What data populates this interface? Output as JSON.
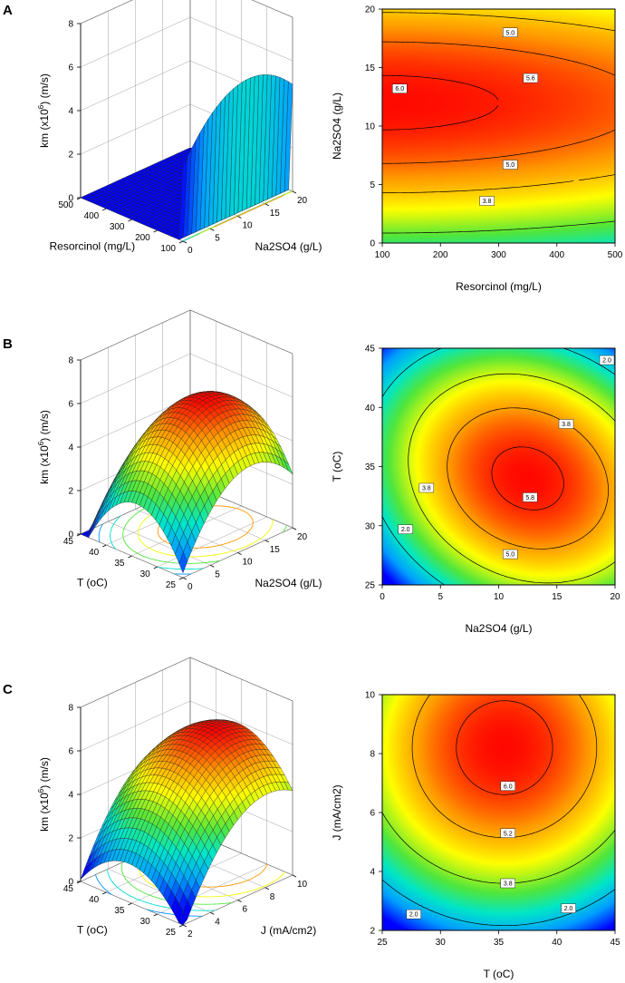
{
  "colors": {
    "low": "#0000ff",
    "mid": "#ffff00",
    "high": "#ff0000",
    "line": "#000000"
  },
  "chart_data": [
    {
      "panel": "A",
      "type": "surface3d",
      "zlabel": "km (x10⁶) (m/s)",
      "zlabel_base": "km (x10",
      "zlabel_sup": "6",
      "zlabel_tail": ") (m/s)",
      "xlabel": "Resorcinol (mg/L)",
      "ylabel": "Na2SO4 (g/L)",
      "xlim": [
        100,
        500
      ],
      "ylim": [
        0,
        20
      ],
      "zlim": [
        0,
        8
      ],
      "x_ticks": [
        100,
        200,
        300,
        400,
        500
      ],
      "y_ticks": [
        0,
        5,
        10,
        15,
        20
      ],
      "z_ticks": [
        0,
        2,
        4,
        6,
        8
      ],
      "model": {
        "z0": 6.1,
        "ax": 0.12,
        "ay": 0.0185,
        "x0": 100,
        "y0": 12,
        "flat": 0.0,
        "flatX": 0.0
      },
      "z_surface_min": 1.7,
      "z_surface_max": 6.1
    },
    {
      "panel": "A",
      "type": "contour",
      "xlabel": "Resorcinol (mg/L)",
      "ylabel": "Na2SO4 (g/L)",
      "xlim": [
        100,
        500
      ],
      "ylim": [
        0,
        20
      ],
      "x_ticks": [
        100,
        200,
        300,
        400,
        500
      ],
      "y_ticks": [
        0,
        5,
        10,
        15,
        20
      ],
      "levels": [
        3.8,
        5.0,
        5.6,
        6.0
      ],
      "contour_labels": [
        {
          "text": "5.0",
          "x": 320,
          "y": 18.0
        },
        {
          "text": "5.6",
          "x": 355,
          "y": 14.1
        },
        {
          "text": "6.0",
          "x": 130,
          "y": 13.2
        },
        {
          "text": "5.0",
          "x": 320,
          "y": 6.7
        },
        {
          "text": "3.8",
          "x": 280,
          "y": 3.6
        }
      ]
    },
    {
      "panel": "B",
      "type": "surface3d",
      "zlabel": "km (x10⁶) (m/s)",
      "zlabel_base": "km (x10",
      "zlabel_sup": "6",
      "zlabel_tail": ") (m/s)",
      "xlabel": "T (oC)",
      "ylabel": "Na2SO4 (g/L)",
      "xlim": [
        25,
        45
      ],
      "ylim": [
        0,
        20
      ],
      "zlim": [
        0,
        8
      ],
      "x_ticks": [
        25,
        30,
        35,
        40,
        45
      ],
      "y_ticks": [
        0,
        5,
        10,
        15,
        20
      ],
      "z_ticks": [
        0,
        2,
        4,
        6,
        8
      ],
      "model": {
        "z0": 6.0,
        "ax": 0.028,
        "ay": 0.0225,
        "x0": 34,
        "y0": 12.5,
        "flat": 0.0,
        "flatX": 0.0
      },
      "z_surface_min": 0.0,
      "z_surface_max": 6.0
    },
    {
      "panel": "B",
      "type": "contour",
      "xlabel": "Na2SO4 (g/L)",
      "ylabel": "T (oC)",
      "xlim": [
        0,
        20
      ],
      "ylim": [
        25,
        45
      ],
      "x_ticks": [
        0,
        5,
        10,
        15,
        20
      ],
      "y_ticks": [
        25,
        30,
        35,
        40,
        45
      ],
      "levels": [
        2.0,
        3.8,
        5.0,
        5.8
      ],
      "contour_labels": [
        {
          "text": "2.0",
          "x": 19.3,
          "y": 44.0
        },
        {
          "text": "3.8",
          "x": 15.8,
          "y": 38.6
        },
        {
          "text": "3.8",
          "x": 3.8,
          "y": 33.2
        },
        {
          "text": "2.0",
          "x": 2.0,
          "y": 29.7
        },
        {
          "text": "5.8",
          "x": 12.7,
          "y": 32.4
        },
        {
          "text": "5.0",
          "x": 11.0,
          "y": 27.6
        }
      ]
    },
    {
      "panel": "C",
      "type": "surface3d",
      "zlabel": "km (x10⁶) (m/s)",
      "zlabel_base": "km (x10",
      "zlabel_sup": "6",
      "zlabel_tail": ") (m/s)",
      "xlabel": "T (oC)",
      "ylabel": "J (mA/cm2)",
      "xlim": [
        25,
        45
      ],
      "ylim": [
        2,
        10
      ],
      "zlim": [
        0,
        8
      ],
      "x_ticks": [
        25,
        30,
        35,
        40,
        45
      ],
      "y_ticks": [
        2,
        4,
        6,
        8,
        10
      ],
      "z_ticks": [
        0,
        2,
        4,
        6,
        8
      ],
      "model": {
        "z0": 6.3,
        "ax": 0.0185,
        "ay": 0.118,
        "x0": 35.5,
        "y0": 8.2,
        "flat": 0.0,
        "flatX": 0.0
      },
      "z_surface_min": 0.6,
      "z_surface_max": 6.3
    },
    {
      "panel": "C",
      "type": "contour",
      "xlabel": "T (oC)",
      "ylabel": "J (mA/cm2)",
      "xlim": [
        25,
        45
      ],
      "ylim": [
        2,
        10
      ],
      "x_ticks": [
        25,
        30,
        35,
        40,
        45
      ],
      "y_ticks": [
        2,
        4,
        6,
        8,
        10
      ],
      "levels": [
        2.0,
        3.8,
        5.2,
        6.0
      ],
      "contour_labels": [
        {
          "text": "6.0",
          "x": 35.8,
          "y": 6.9
        },
        {
          "text": "5.2",
          "x": 35.8,
          "y": 5.3
        },
        {
          "text": "3.8",
          "x": 35.8,
          "y": 3.6
        },
        {
          "text": "2.0",
          "x": 27.7,
          "y": 2.55
        },
        {
          "text": "2.0",
          "x": 41.0,
          "y": 2.75
        }
      ]
    }
  ]
}
